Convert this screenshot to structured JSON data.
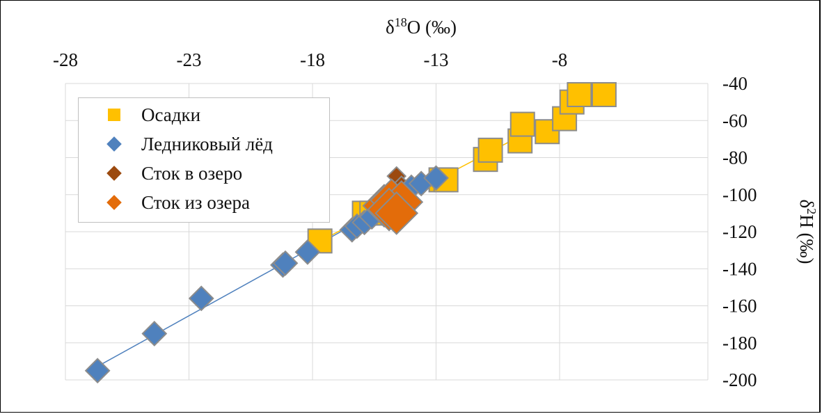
{
  "chart_data": {
    "type": "scatter",
    "title": "",
    "x_axis": {
      "label": "δ18O (‰)",
      "label_base": "δ",
      "label_sup": "18",
      "label_rest": "O (‰)",
      "position": "top",
      "range": [
        -28,
        -2
      ],
      "ticks": [
        -28,
        -23,
        -18,
        -13,
        -8
      ]
    },
    "y_axis": {
      "label": "δ2H (‰)",
      "label_base": "δ",
      "label_sup": "2",
      "label_rest": "H (‰)",
      "position": "right",
      "range": [
        -200,
        -40
      ],
      "ticks": [
        -40,
        -60,
        -80,
        -100,
        -120,
        -140,
        -160,
        -180,
        -200
      ]
    },
    "grid": true,
    "legend_position": "top-left",
    "series": [
      {
        "name": "Осадки",
        "marker": "square",
        "color": "#ffc000",
        "edge": "#8c8c8c",
        "trendline": true,
        "trend_color": "#ffc000",
        "points": [
          [
            -17.7,
            -125
          ],
          [
            -15.9,
            -110
          ],
          [
            -15.6,
            -110
          ],
          [
            -12.8,
            -92
          ],
          [
            -12.6,
            -92
          ],
          [
            -11.0,
            -81
          ],
          [
            -10.8,
            -76
          ],
          [
            -9.6,
            -71
          ],
          [
            -9.5,
            -62
          ],
          [
            -8.5,
            -66
          ],
          [
            -7.8,
            -59
          ],
          [
            -7.5,
            -50
          ],
          [
            -7.2,
            -46
          ],
          [
            -6.2,
            -46
          ]
        ]
      },
      {
        "name": "Ледниковый лёд",
        "marker": "diamond",
        "color": "#4f81bd",
        "edge": "#8c8c8c",
        "trendline": true,
        "trend_color": "#4f81bd",
        "points": [
          [
            -26.7,
            -195
          ],
          [
            -24.4,
            -175
          ],
          [
            -22.5,
            -156
          ],
          [
            -19.2,
            -138
          ],
          [
            -19.1,
            -137
          ],
          [
            -18.2,
            -131
          ],
          [
            -16.4,
            -119
          ],
          [
            -16.2,
            -117
          ],
          [
            -15.9,
            -115
          ],
          [
            -15.6,
            -112
          ],
          [
            -14.0,
            -96
          ],
          [
            -13.6,
            -94
          ],
          [
            -13.0,
            -91
          ]
        ]
      },
      {
        "name": "Сток в озеро",
        "marker": "diamond",
        "color": "#9c4a0f",
        "edge": "#8c8c8c",
        "trendline": false,
        "points": [
          [
            -14.6,
            -90
          ],
          [
            -14.4,
            -95
          ]
        ]
      },
      {
        "name": "Сток из озера",
        "marker": "diamond",
        "color": "#e36c0a",
        "edge": "#8c8c8c",
        "trendline": true,
        "trend_color": "#e36c0a",
        "points": [
          [
            -15.1,
            -106
          ],
          [
            -14.8,
            -103
          ],
          [
            -14.4,
            -104
          ],
          [
            -14.9,
            -108
          ],
          [
            -14.6,
            -110
          ]
        ]
      }
    ]
  }
}
